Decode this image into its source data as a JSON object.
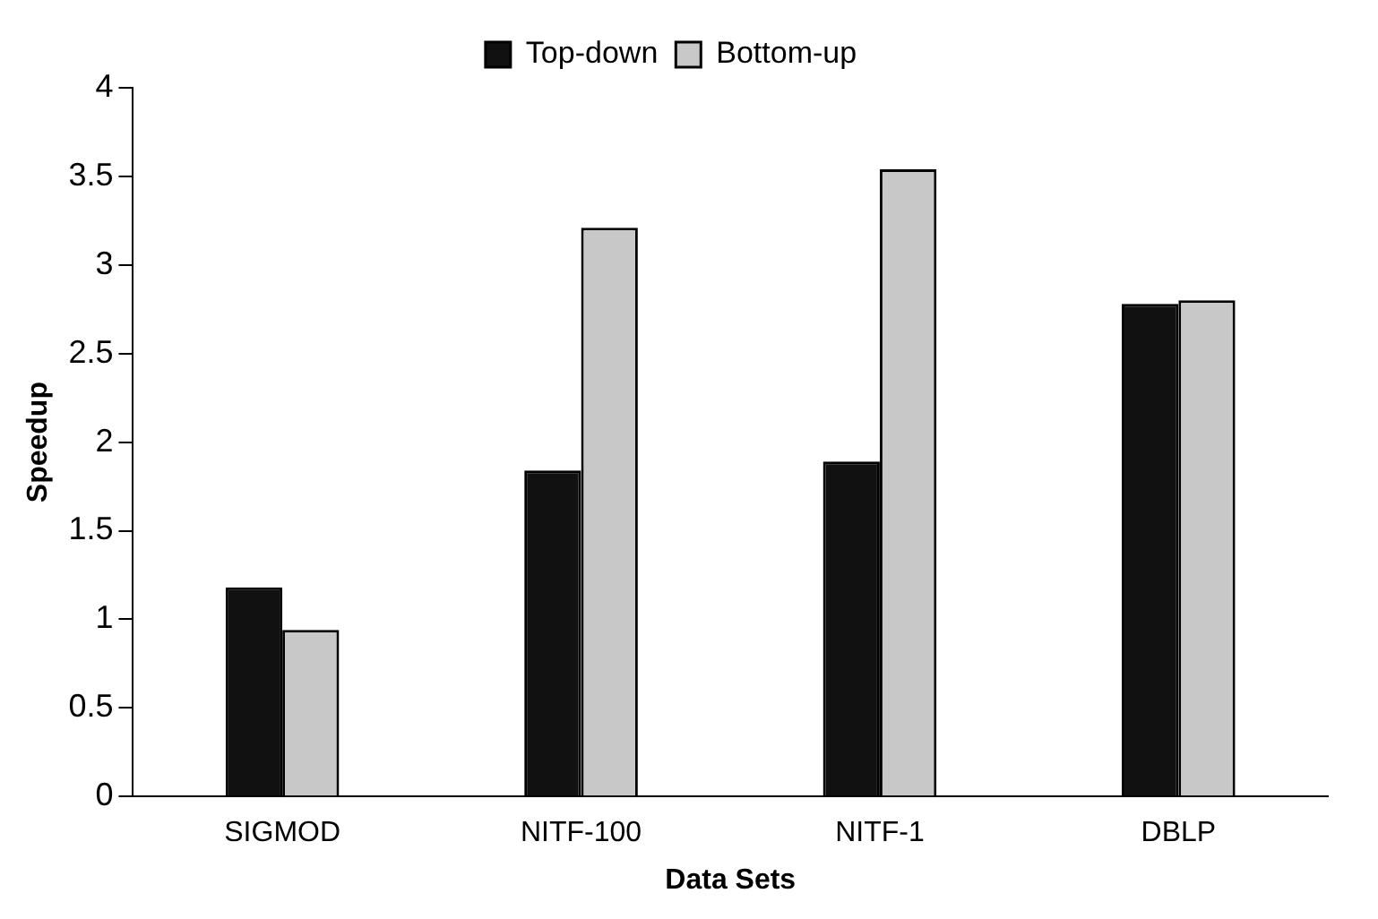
{
  "chart_data": {
    "type": "bar",
    "xlabel": "Data Sets",
    "ylabel": "Speedup",
    "categories": [
      "SIGMOD",
      "NITF-100",
      "NITF-1",
      "DBLP"
    ],
    "series": [
      {
        "name": "Top-down",
        "color": "#111111",
        "values": [
          1.18,
          1.84,
          1.89,
          2.78
        ]
      },
      {
        "name": "Bottom-up",
        "color": "#c8c8c8",
        "values": [
          0.94,
          3.21,
          3.54,
          2.8
        ]
      }
    ],
    "ylim": [
      0,
      4
    ],
    "yticks": [
      0,
      0.5,
      1,
      1.5,
      2,
      2.5,
      3,
      3.5,
      4
    ],
    "grid": false,
    "legend": "top"
  }
}
